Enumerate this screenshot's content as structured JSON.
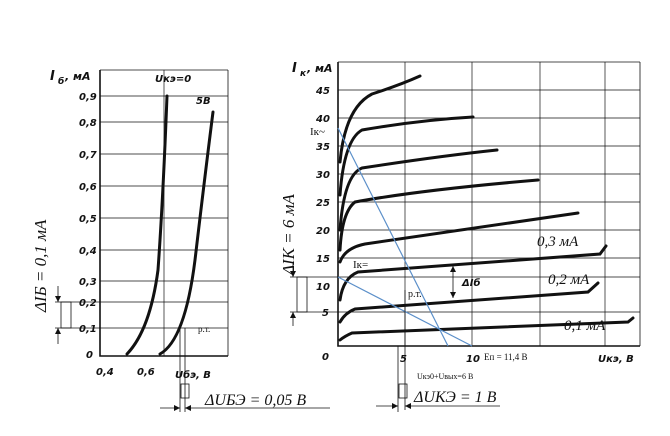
{
  "left": {
    "y_title": "I",
    "y_sub": "б",
    "y_unit": ", мА",
    "curve_label_1": "Uкэ=0",
    "curve_label_2": "5В",
    "y_ticks": [
      "0,9",
      "0,8",
      "0,7",
      "0,6",
      "0,5",
      "0,4",
      "0,3",
      "0,2",
      "0,1",
      "0"
    ],
    "x_ticks": [
      "0,4",
      "0,6"
    ],
    "x_axis_label": "Uбэ, В",
    "wp_label": "р.т.",
    "delta_ib": "ΔIБ = 0,1 мА",
    "delta_ube": "ΔUБЭ = 0,05 В"
  },
  "right": {
    "y_title": "I",
    "y_sub": "к",
    "y_unit": ", мА",
    "y_ticks": [
      "45",
      "40",
      "35",
      "30",
      "25",
      "20",
      "15",
      "10",
      "5",
      "0"
    ],
    "x_ticks": [
      "5",
      "10"
    ],
    "x_axis_label": "Uкэ, В",
    "ep_label": "Еп = 11,4 В",
    "ik_ac": "Iк~",
    "ik_dc": "Iк=",
    "wp_label": "р.т.",
    "delta_ib_mark": "ΔIб",
    "curve_03": "0,3 мА",
    "curve_02": "0,2 мА",
    "curve_01": "0,1 мА",
    "delta_ik": "ΔIК = 6 мА",
    "uk_label": "Uкэ0+Uвых=6 В",
    "delta_uke": "ΔUКЭ = 1 В"
  }
}
